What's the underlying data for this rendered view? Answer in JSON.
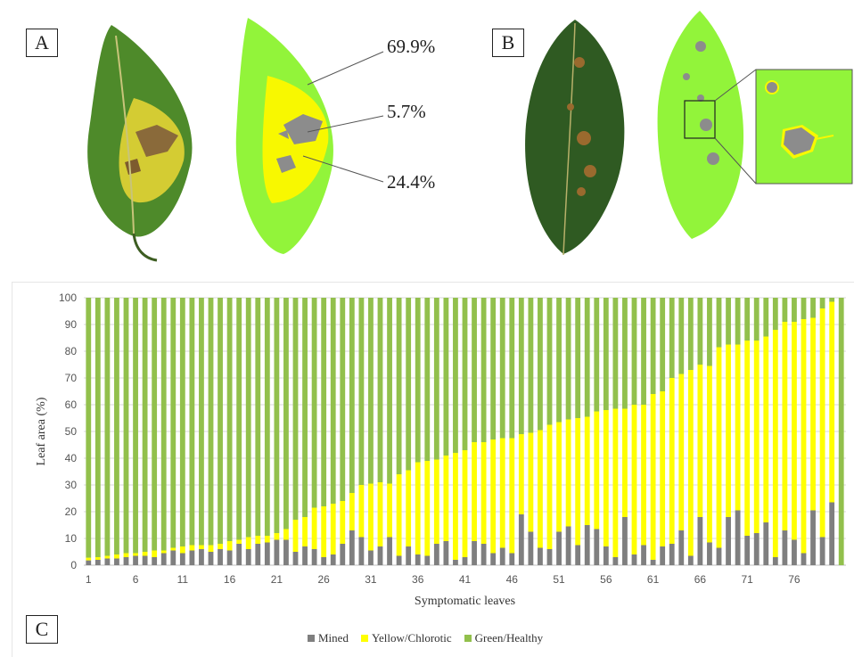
{
  "panels": {
    "a": "A",
    "b": "B",
    "c": "C"
  },
  "annotations": {
    "green": "69.9%",
    "mined": "5.7%",
    "yellow": "24.4%"
  },
  "colors": {
    "mined": "#7f7f7f",
    "yellow": "#ffff00",
    "green": "#92c04c",
    "seg_green": "#92f43a",
    "seg_yellow": "#f8f800",
    "seg_gray": "#8c8c8c"
  },
  "chart_data": {
    "type": "bar",
    "stacked": true,
    "xlabel": "Symptomatic leaves",
    "ylabel": "Leaf area (%)",
    "ylim": [
      0,
      100
    ],
    "yticks": [
      0,
      10,
      20,
      30,
      40,
      50,
      60,
      70,
      80,
      90,
      100
    ],
    "xtick_labels": [
      "1",
      "6",
      "11",
      "16",
      "21",
      "26",
      "31",
      "36",
      "41",
      "46",
      "51",
      "56",
      "61",
      "66",
      "71",
      "76"
    ],
    "categories": [
      "1",
      "2",
      "3",
      "4",
      "5",
      "6",
      "7",
      "8",
      "9",
      "10",
      "11",
      "12",
      "13",
      "14",
      "15",
      "16",
      "17",
      "18",
      "19",
      "20",
      "21",
      "22",
      "23",
      "24",
      "25",
      "26",
      "27",
      "28",
      "29",
      "30",
      "31",
      "32",
      "33",
      "34",
      "35",
      "36",
      "37",
      "38",
      "39",
      "40",
      "41",
      "42",
      "43",
      "44",
      "45",
      "46",
      "47",
      "48",
      "49",
      "50",
      "51",
      "52",
      "53",
      "54",
      "55",
      "56",
      "57",
      "58",
      "59",
      "60",
      "61",
      "62",
      "63",
      "64",
      "65",
      "66",
      "67",
      "68",
      "69",
      "70",
      "71",
      "72",
      "73",
      "74",
      "75",
      "76",
      "77",
      "78",
      "79",
      "80",
      "81"
    ],
    "legend": [
      "Mined",
      "Yellow/Chlorotic",
      "Green/Healthy"
    ],
    "legend_position": "bottom",
    "grid": true,
    "series": [
      {
        "name": "Mined",
        "values": [
          1.8,
          2,
          2.5,
          2.5,
          3,
          3.5,
          3.5,
          3,
          4.5,
          5.5,
          4.5,
          5.5,
          6,
          5,
          6,
          5.5,
          8,
          6,
          8,
          8.5,
          9.5,
          9.5,
          5,
          7,
          6,
          3,
          4,
          8,
          13,
          10.5,
          5.5,
          7,
          10.5,
          3.5,
          7,
          4,
          3.5,
          8,
          9,
          2,
          3,
          9,
          8,
          4.5,
          6.5,
          4.5,
          19,
          12.5,
          6.5,
          6,
          12.5,
          14.5,
          7.5,
          15,
          13.5,
          7,
          3,
          18,
          4,
          7.5,
          2,
          7,
          8,
          13,
          3.5,
          18,
          8.5,
          6.5,
          18,
          20.5,
          11,
          12,
          16,
          3,
          13,
          9.5,
          4.5,
          20.5,
          10.5,
          23.5,
          0
        ]
      },
      {
        "name": "Yellow/Chlorotic",
        "values": [
          1,
          1,
          1,
          1.5,
          1.5,
          1,
          1.5,
          2.5,
          1,
          1,
          2.5,
          2,
          1.5,
          2.5,
          2,
          3.5,
          1.5,
          4.5,
          3,
          2.5,
          2.5,
          4,
          12,
          11,
          15.5,
          19,
          19,
          16,
          14,
          19.5,
          25,
          24,
          20,
          30.5,
          28.5,
          34.5,
          35.5,
          31.5,
          32,
          40,
          40,
          37,
          38,
          42.5,
          41,
          43,
          30,
          37,
          44,
          46.5,
          41,
          40,
          47.5,
          40.5,
          44,
          51,
          55.5,
          40.5,
          56,
          52.5,
          62,
          58,
          62,
          58.5,
          69.5,
          57,
          66,
          75,
          64.5,
          62,
          73,
          72,
          69.5,
          85,
          78,
          81.5,
          87.5,
          72,
          85.5,
          75,
          0
        ]
      },
      {
        "name": "Green/Healthy",
        "values": [
          97.2,
          97,
          96.5,
          96,
          95.5,
          95.5,
          95,
          94.5,
          94.5,
          93.5,
          93,
          92.5,
          92.5,
          92.5,
          92,
          91,
          90.5,
          89.5,
          89,
          89,
          88,
          86.5,
          83,
          82,
          78.5,
          78,
          77,
          76,
          73,
          70,
          69.5,
          69,
          69.5,
          66,
          64.5,
          61.5,
          61,
          60.5,
          59,
          58,
          57,
          54,
          54,
          53,
          52.5,
          52.5,
          51,
          50.5,
          49.5,
          47.5,
          46.5,
          45.5,
          45,
          44.5,
          42.5,
          42,
          41.5,
          41.5,
          40,
          40,
          36,
          35,
          30,
          28.5,
          27,
          25,
          25.5,
          18.5,
          17.5,
          17.5,
          16,
          16,
          14.5,
          12,
          9,
          9,
          8,
          7.5,
          4,
          1.5,
          100
        ]
      }
    ]
  }
}
